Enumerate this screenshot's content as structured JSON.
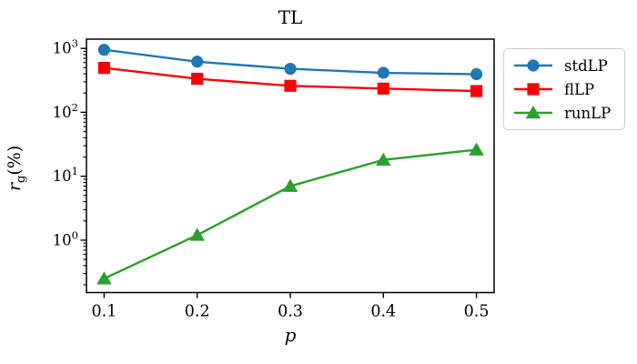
{
  "title": "TL",
  "axes": {
    "xlabel": "p",
    "ylabel_parts": {
      "var": "r",
      "sub": "g",
      "suffix": "(%)"
    },
    "ylabel_text": "r_g(%)",
    "x_tick_labels": [
      "0.1",
      "0.2",
      "0.3",
      "0.4",
      "0.5"
    ],
    "y_tick_base": "10",
    "y_tick_exponents": [
      0,
      1,
      2,
      3
    ],
    "xlim": [
      0.081,
      0.519
    ],
    "ylim_log10": [
      -0.82,
      3.145
    ],
    "grid": false,
    "axis_color": "#000000"
  },
  "chart_data": {
    "type": "line",
    "title": "TL",
    "xlabel": "p",
    "ylabel": "r_g(%)",
    "yscale": "log",
    "xlim": [
      0.081,
      0.519
    ],
    "ylim": [
      0.15,
      1400
    ],
    "x": [
      0.1,
      0.2,
      0.3,
      0.4,
      0.5
    ],
    "series": [
      {
        "name": "stdLP",
        "color": "#1f77b4",
        "marker": "circle",
        "values": [
          950,
          620,
          480,
          415,
          395
        ]
      },
      {
        "name": "flLP",
        "color": "#fb0006",
        "marker": "square",
        "values": [
          495,
          335,
          260,
          235,
          215
        ]
      },
      {
        "name": "runLP",
        "color": "#2ca02c",
        "marker": "triangle",
        "values": [
          0.25,
          1.2,
          7.0,
          18,
          26
        ]
      }
    ],
    "legend_position": "outside-right",
    "legend_labels": [
      "stdLP",
      "flLP",
      "runLP"
    ]
  }
}
